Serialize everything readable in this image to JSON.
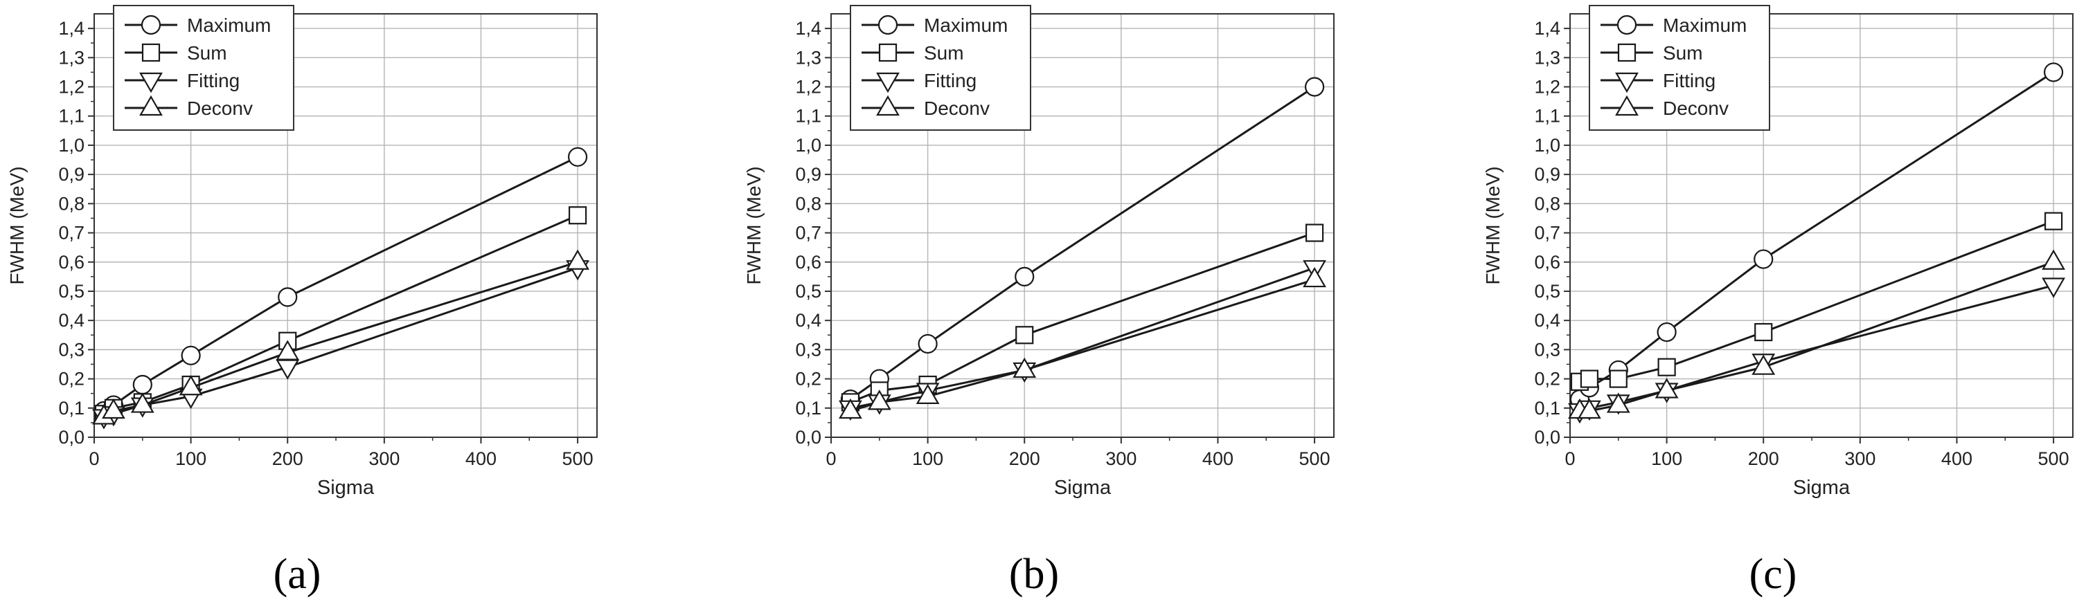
{
  "figure": {
    "panel_captions": [
      "(a)",
      "(b)",
      "(c)"
    ]
  },
  "colors": {
    "line": "#1a1a1a",
    "grid": "#b5b5b5",
    "marker_fill": "#ffffff"
  },
  "chart_data": [
    {
      "type": "line",
      "panel": "(a)",
      "xlabel": "Sigma",
      "ylabel": "FWHM (MeV)",
      "xlim": [
        0,
        520
      ],
      "ylim": [
        0,
        1.45
      ],
      "xticks": [
        0,
        100,
        200,
        300,
        400,
        500
      ],
      "yticks": [
        0,
        0.1,
        0.2,
        0.3,
        0.4,
        0.5,
        0.6,
        0.7,
        0.8,
        0.9,
        1.0,
        1.1,
        1.2,
        1.3,
        1.4
      ],
      "ytick_labels": [
        "0,0",
        "0,1",
        "0,2",
        "0,3",
        "0,4",
        "0,5",
        "0,6",
        "0,7",
        "0,8",
        "0,9",
        "1,0",
        "1,1",
        "1,2",
        "1,3",
        "1,4"
      ],
      "grid": true,
      "legend_position": "top-left",
      "series": [
        {
          "name": "Maximum",
          "marker": "circle",
          "x": [
            10,
            20,
            50,
            100,
            200,
            500
          ],
          "y": [
            0.09,
            0.11,
            0.18,
            0.28,
            0.48,
            0.96
          ]
        },
        {
          "name": "Sum",
          "marker": "square",
          "x": [
            10,
            20,
            50,
            100,
            200,
            500
          ],
          "y": [
            0.08,
            0.1,
            0.12,
            0.18,
            0.33,
            0.76
          ]
        },
        {
          "name": "Fitting",
          "marker": "triangle-down",
          "x": [
            10,
            20,
            50,
            100,
            200,
            500
          ],
          "y": [
            0.07,
            0.08,
            0.11,
            0.14,
            0.24,
            0.58
          ]
        },
        {
          "name": "Deconv",
          "marker": "triangle-up",
          "x": [
            10,
            20,
            50,
            100,
            200,
            500
          ],
          "y": [
            0.07,
            0.09,
            0.11,
            0.17,
            0.29,
            0.6
          ]
        }
      ]
    },
    {
      "type": "line",
      "panel": "(b)",
      "xlabel": "Sigma",
      "ylabel": "FWHM (MeV)",
      "xlim": [
        0,
        520
      ],
      "ylim": [
        0,
        1.45
      ],
      "xticks": [
        0,
        100,
        200,
        300,
        400,
        500
      ],
      "yticks": [
        0,
        0.1,
        0.2,
        0.3,
        0.4,
        0.5,
        0.6,
        0.7,
        0.8,
        0.9,
        1.0,
        1.1,
        1.2,
        1.3,
        1.4
      ],
      "ytick_labels": [
        "0,0",
        "0,1",
        "0,2",
        "0,3",
        "0,4",
        "0,5",
        "0,6",
        "0,7",
        "0,8",
        "0,9",
        "1,0",
        "1,1",
        "1,2",
        "1,3",
        "1,4"
      ],
      "grid": true,
      "legend_position": "top-left",
      "series": [
        {
          "name": "Maximum",
          "marker": "circle",
          "x": [
            20,
            50,
            100,
            200,
            500
          ],
          "y": [
            0.13,
            0.2,
            0.32,
            0.55,
            1.2
          ]
        },
        {
          "name": "Sum",
          "marker": "square",
          "x": [
            20,
            50,
            100,
            200,
            500
          ],
          "y": [
            0.12,
            0.16,
            0.18,
            0.35,
            0.7
          ]
        },
        {
          "name": "Fitting",
          "marker": "triangle-down",
          "x": [
            20,
            50,
            100,
            200,
            500
          ],
          "y": [
            0.1,
            0.12,
            0.16,
            0.23,
            0.58
          ]
        },
        {
          "name": "Deconv",
          "marker": "triangle-up",
          "x": [
            20,
            50,
            100,
            200,
            500
          ],
          "y": [
            0.09,
            0.12,
            0.14,
            0.23,
            0.54
          ]
        }
      ]
    },
    {
      "type": "line",
      "panel": "(c)",
      "xlabel": "Sigma",
      "ylabel": "FWHM (MeV)",
      "xlim": [
        0,
        520
      ],
      "ylim": [
        0,
        1.45
      ],
      "xticks": [
        0,
        100,
        200,
        300,
        400,
        500
      ],
      "yticks": [
        0,
        0.1,
        0.2,
        0.3,
        0.4,
        0.5,
        0.6,
        0.7,
        0.8,
        0.9,
        1.0,
        1.1,
        1.2,
        1.3,
        1.4
      ],
      "ytick_labels": [
        "0,0",
        "0,1",
        "0,2",
        "0,3",
        "0,4",
        "0,5",
        "0,6",
        "0,7",
        "0,8",
        "0,9",
        "1,0",
        "1,1",
        "1,2",
        "1,3",
        "1,4"
      ],
      "grid": true,
      "legend_position": "top-left",
      "series": [
        {
          "name": "Maximum",
          "marker": "circle",
          "x": [
            10,
            20,
            50,
            100,
            200,
            500
          ],
          "y": [
            0.13,
            0.17,
            0.23,
            0.36,
            0.61,
            1.25
          ]
        },
        {
          "name": "Sum",
          "marker": "square",
          "x": [
            10,
            20,
            50,
            100,
            200,
            500
          ],
          "y": [
            0.19,
            0.2,
            0.2,
            0.24,
            0.36,
            0.74
          ]
        },
        {
          "name": "Fitting",
          "marker": "triangle-down",
          "x": [
            10,
            20,
            50,
            100,
            200,
            500
          ],
          "y": [
            0.09,
            0.1,
            0.12,
            0.16,
            0.26,
            0.52
          ]
        },
        {
          "name": "Deconv",
          "marker": "triangle-up",
          "x": [
            10,
            20,
            50,
            100,
            200,
            500
          ],
          "y": [
            0.09,
            0.09,
            0.11,
            0.16,
            0.24,
            0.6
          ]
        }
      ]
    }
  ]
}
